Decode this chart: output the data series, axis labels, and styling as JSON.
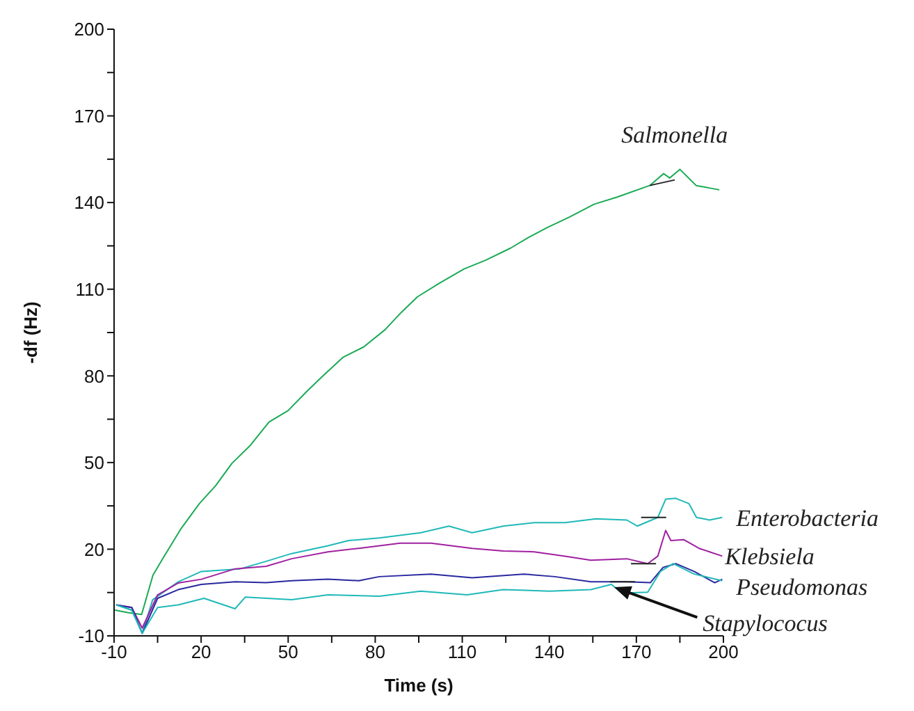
{
  "chart_data": {
    "type": "line",
    "xlabel": "Time (s)",
    "ylabel": "-df (Hz)",
    "xlim": [
      -10,
      200
    ],
    "xticks": [
      -10,
      {
        "value": 5,
        "label": null
      },
      20,
      {
        "value": 35,
        "label": null
      },
      50,
      {
        "value": 65,
        "label": null
      },
      80,
      {
        "value": 95,
        "label": null
      },
      110,
      {
        "value": 125,
        "label": null
      },
      140,
      {
        "value": 155,
        "label": null
      },
      170,
      {
        "value": 185,
        "label": null
      },
      200
    ],
    "ylim": [
      -10,
      200
    ],
    "yticks": [
      -10,
      {
        "value": 5,
        "label": null
      },
      20,
      {
        "value": 35,
        "label": null
      },
      50,
      {
        "value": 65,
        "label": null
      },
      80,
      {
        "value": 95,
        "label": null
      },
      110,
      {
        "value": 125,
        "label": null
      },
      140,
      {
        "value": 155,
        "label": null
      },
      170,
      {
        "value": 185,
        "label": null
      },
      200
    ],
    "grid": false,
    "legend": false,
    "marker": "none",
    "line_style": "solid",
    "series": [
      {
        "name": "Salmonella",
        "color": "#1aaa55",
        "x": [
          -10,
          -5,
          -0.5,
          3.4,
          6.7,
          13,
          19.4,
          25,
          30.6,
          37,
          43.4,
          50,
          56.2,
          62,
          69,
          76,
          83.4,
          89,
          94.6,
          102,
          110.6,
          118,
          126.6,
          133,
          139.4,
          147,
          155.4,
          163.4,
          174.6,
          179.4,
          181.5,
          185,
          190.6,
          195.4,
          198.6
        ],
        "values": [
          -1,
          -2,
          -2.6,
          11,
          16.6,
          27,
          35.8,
          42,
          49.7,
          56,
          64,
          68,
          74.4,
          80,
          86.5,
          90,
          96,
          102,
          107.4,
          112,
          117,
          120,
          124.2,
          128,
          131.4,
          135,
          139.4,
          141.9,
          145.9,
          150,
          148.5,
          151.5,
          145.9,
          145,
          144.4
        ]
      },
      {
        "name": "Enterobacteria",
        "color": "#20b8b8",
        "x": [
          -9.2,
          -3.9,
          -0.3,
          3.3,
          12.1,
          20.1,
          33.5,
          42.4,
          51.2,
          63.7,
          70.8,
          81.4,
          95.7,
          105.4,
          113.4,
          124.1,
          134.8,
          145.4,
          156.1,
          166.7,
          170.3,
          177.4,
          180.1,
          183.6,
          188.1,
          190.7,
          195.2,
          199.6
        ],
        "values": [
          0.7,
          -1.1,
          -9.1,
          2.5,
          8.7,
          12.3,
          13.2,
          15.8,
          18.5,
          21.2,
          23,
          23.9,
          25.7,
          28,
          25.7,
          28,
          29.2,
          29.2,
          30.5,
          30.1,
          28,
          31,
          37.3,
          37.6,
          35.8,
          31,
          30.1,
          31
        ]
      },
      {
        "name": "Klebsiela",
        "color": "#a020a0",
        "x": [
          -9.2,
          -3.9,
          -0.3,
          5,
          12.1,
          20.1,
          31.7,
          42.4,
          51.2,
          63.7,
          74.3,
          88.6,
          99.2,
          113.4,
          124.1,
          134.8,
          145.4,
          154.3,
          166.7,
          173.9,
          177.4,
          180.1,
          181.9,
          186.3,
          191.6,
          199.6
        ],
        "values": [
          0.7,
          -0.2,
          -7.3,
          4.2,
          8.3,
          9.6,
          13.2,
          14.1,
          16.7,
          19.1,
          20.3,
          22.1,
          22.1,
          20.3,
          19.4,
          19.1,
          17.6,
          16.2,
          16.7,
          15,
          17.6,
          26.5,
          23,
          23.3,
          20.3,
          17.6
        ]
      },
      {
        "name": "Pseudomonas",
        "color": "#2828a0",
        "x": [
          -9.2,
          -3.9,
          -0.3,
          5,
          12.1,
          20.1,
          31.7,
          42.4,
          51.2,
          63.7,
          74.3,
          81.4,
          99.2,
          113.4,
          131.2,
          141.9,
          154.3,
          166.7,
          174.8,
          179.2,
          183.6,
          189.9,
          197,
          199.6
        ],
        "values": [
          0.7,
          -0.2,
          -9.1,
          3,
          6,
          7.8,
          8.7,
          8.4,
          9.1,
          9.6,
          9.1,
          10.5,
          11.4,
          10.1,
          11.4,
          10.5,
          8.7,
          8.7,
          8.4,
          13.7,
          15,
          12.3,
          8.4,
          9.6
        ]
      },
      {
        "name": "Stapylococus",
        "color": "#20b8b8",
        "x": [
          -9.2,
          -3.9,
          -0.3,
          5,
          12.1,
          21,
          31.7,
          35.2,
          51.2,
          63.7,
          81.4,
          95.7,
          111.7,
          124.1,
          140.1,
          154.3,
          161.4,
          165,
          173.9,
          178.3,
          182.7,
          189.9,
          199.6
        ],
        "values": [
          0.7,
          -1.1,
          -9.1,
          -0.2,
          0.7,
          3,
          -0.6,
          3.4,
          2.5,
          4.2,
          3.7,
          5.5,
          4.2,
          6,
          5.5,
          6,
          7.8,
          4.8,
          5.1,
          12.3,
          15,
          11.4,
          9.1
        ]
      }
    ]
  }
}
